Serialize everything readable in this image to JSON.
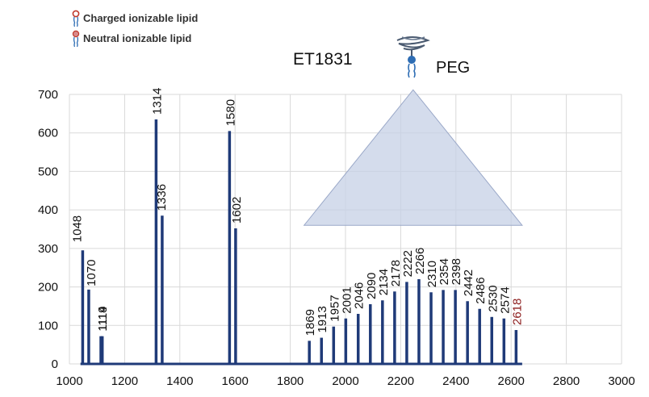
{
  "legend": {
    "items": [
      {
        "label": "Charged ionizable lipid",
        "icon": "charged-lipid-icon"
      },
      {
        "label": "Neutral ionizable lipid",
        "icon": "neutral-lipid-icon"
      }
    ]
  },
  "annotation": {
    "title": "ET1831",
    "peg_label": "PEG",
    "peg_icon": "peg-lipid-icon"
  },
  "colors": {
    "bar": "#1f3a78",
    "highlight_label": "#8b1a1a",
    "grid": "#d9d9d9",
    "triangle_fill": "#c5d0e6",
    "triangle_stroke": "#9aa8c8"
  },
  "chart_data": {
    "type": "bar",
    "title": "",
    "xlabel": "",
    "ylabel": "",
    "xlim": [
      1000,
      3000
    ],
    "ylim": [
      0,
      700
    ],
    "x_ticks": [
      1000,
      1200,
      1400,
      1600,
      1800,
      2000,
      2200,
      2400,
      2600,
      2800,
      3000
    ],
    "y_ticks": [
      0,
      100,
      200,
      300,
      400,
      500,
      600,
      700
    ],
    "grid": true,
    "peaks": [
      {
        "x": 1048,
        "y": 295,
        "label": "1048"
      },
      {
        "x": 1070,
        "y": 193,
        "label": "1070"
      },
      {
        "x": 1114,
        "y": 72,
        "label": "1114"
      },
      {
        "x": 1119,
        "y": 72,
        "label": "1119"
      },
      {
        "x": 1314,
        "y": 635,
        "label": "1314"
      },
      {
        "x": 1336,
        "y": 385,
        "label": "1336"
      },
      {
        "x": 1580,
        "y": 605,
        "label": "1580"
      },
      {
        "x": 1602,
        "y": 352,
        "label": "1602"
      },
      {
        "x": 1869,
        "y": 60,
        "label": "1869"
      },
      {
        "x": 1913,
        "y": 68,
        "label": "1913"
      },
      {
        "x": 1957,
        "y": 97,
        "label": "1957"
      },
      {
        "x": 2001,
        "y": 118,
        "label": "2001"
      },
      {
        "x": 2046,
        "y": 130,
        "label": "2046"
      },
      {
        "x": 2090,
        "y": 155,
        "label": "2090"
      },
      {
        "x": 2134,
        "y": 165,
        "label": "2134"
      },
      {
        "x": 2178,
        "y": 188,
        "label": "2178"
      },
      {
        "x": 2222,
        "y": 213,
        "label": "2222"
      },
      {
        "x": 2266,
        "y": 220,
        "label": "2266"
      },
      {
        "x": 2310,
        "y": 186,
        "label": "2310"
      },
      {
        "x": 2354,
        "y": 192,
        "label": "2354"
      },
      {
        "x": 2398,
        "y": 192,
        "label": "2398"
      },
      {
        "x": 2442,
        "y": 163,
        "label": "2442"
      },
      {
        "x": 2486,
        "y": 143,
        "label": "2486"
      },
      {
        "x": 2530,
        "y": 122,
        "label": "2530"
      },
      {
        "x": 2574,
        "y": 118,
        "label": "2574"
      },
      {
        "x": 2618,
        "y": 88,
        "label": "2618",
        "highlight": true
      }
    ],
    "triangle_region": {
      "x_start": 1850,
      "x_apex": 2245,
      "x_end": 2640,
      "y_base": 360,
      "y_apex": 712
    }
  }
}
